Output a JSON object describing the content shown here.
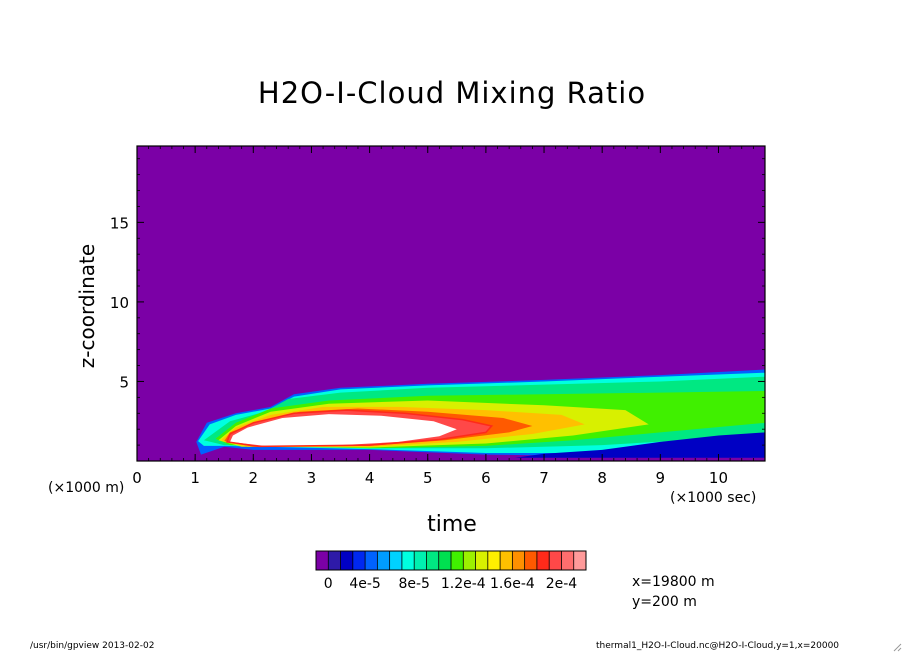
{
  "chart_data": {
    "type": "heatmap",
    "title": "H2O-I-Cloud Mixing Ratio",
    "xlabel": "time",
    "ylabel": "z-coordinate",
    "x_unit_note": "(×1000 sec)",
    "y_unit_note": "(×1000 m)",
    "xlim": [
      0,
      10.8
    ],
    "ylim": [
      0,
      19.8
    ],
    "x_ticks": [
      0,
      1,
      2,
      3,
      4,
      5,
      6,
      7,
      8,
      9,
      10
    ],
    "y_ticks": [
      5,
      10,
      15
    ],
    "colorbar": {
      "levels": [
        0,
        1e-05,
        2e-05,
        3e-05,
        4e-05,
        5e-05,
        6e-05,
        7e-05,
        8e-05,
        9e-05,
        0.0001,
        0.00011,
        0.00012,
        0.00013,
        0.00014,
        0.00015,
        0.00016,
        0.00017,
        0.00018,
        0.00019,
        0.0002
      ],
      "tick_labels": [
        "0",
        "4e-5",
        "8e-5",
        "1.2e-4",
        "1.6e-4",
        "2e-4"
      ],
      "colors": [
        "#7b00a6",
        "#2e1aa8",
        "#0000c4",
        "#0028f0",
        "#0062ff",
        "#009cff",
        "#00d2ff",
        "#00ffe0",
        "#00f0b0",
        "#00e882",
        "#00e050",
        "#40f000",
        "#9cf000",
        "#d8f000",
        "#fff000",
        "#ffc000",
        "#ff9000",
        "#ff5a00",
        "#ff2a1a",
        "#ff4848",
        "#ff6e6e",
        "#ff9a9a"
      ]
    },
    "annotations": [
      "x=19800 m",
      "y=200 m"
    ]
  },
  "footer": {
    "left": "/usr/bin/gpview  2013-02-02",
    "right": "thermal1_H2O-I-Cloud.nc@H2O-I-Cloud,y=1,x=20000"
  },
  "colors": {
    "background_field": "#7b00a6",
    "over_max": "#ffffff"
  }
}
